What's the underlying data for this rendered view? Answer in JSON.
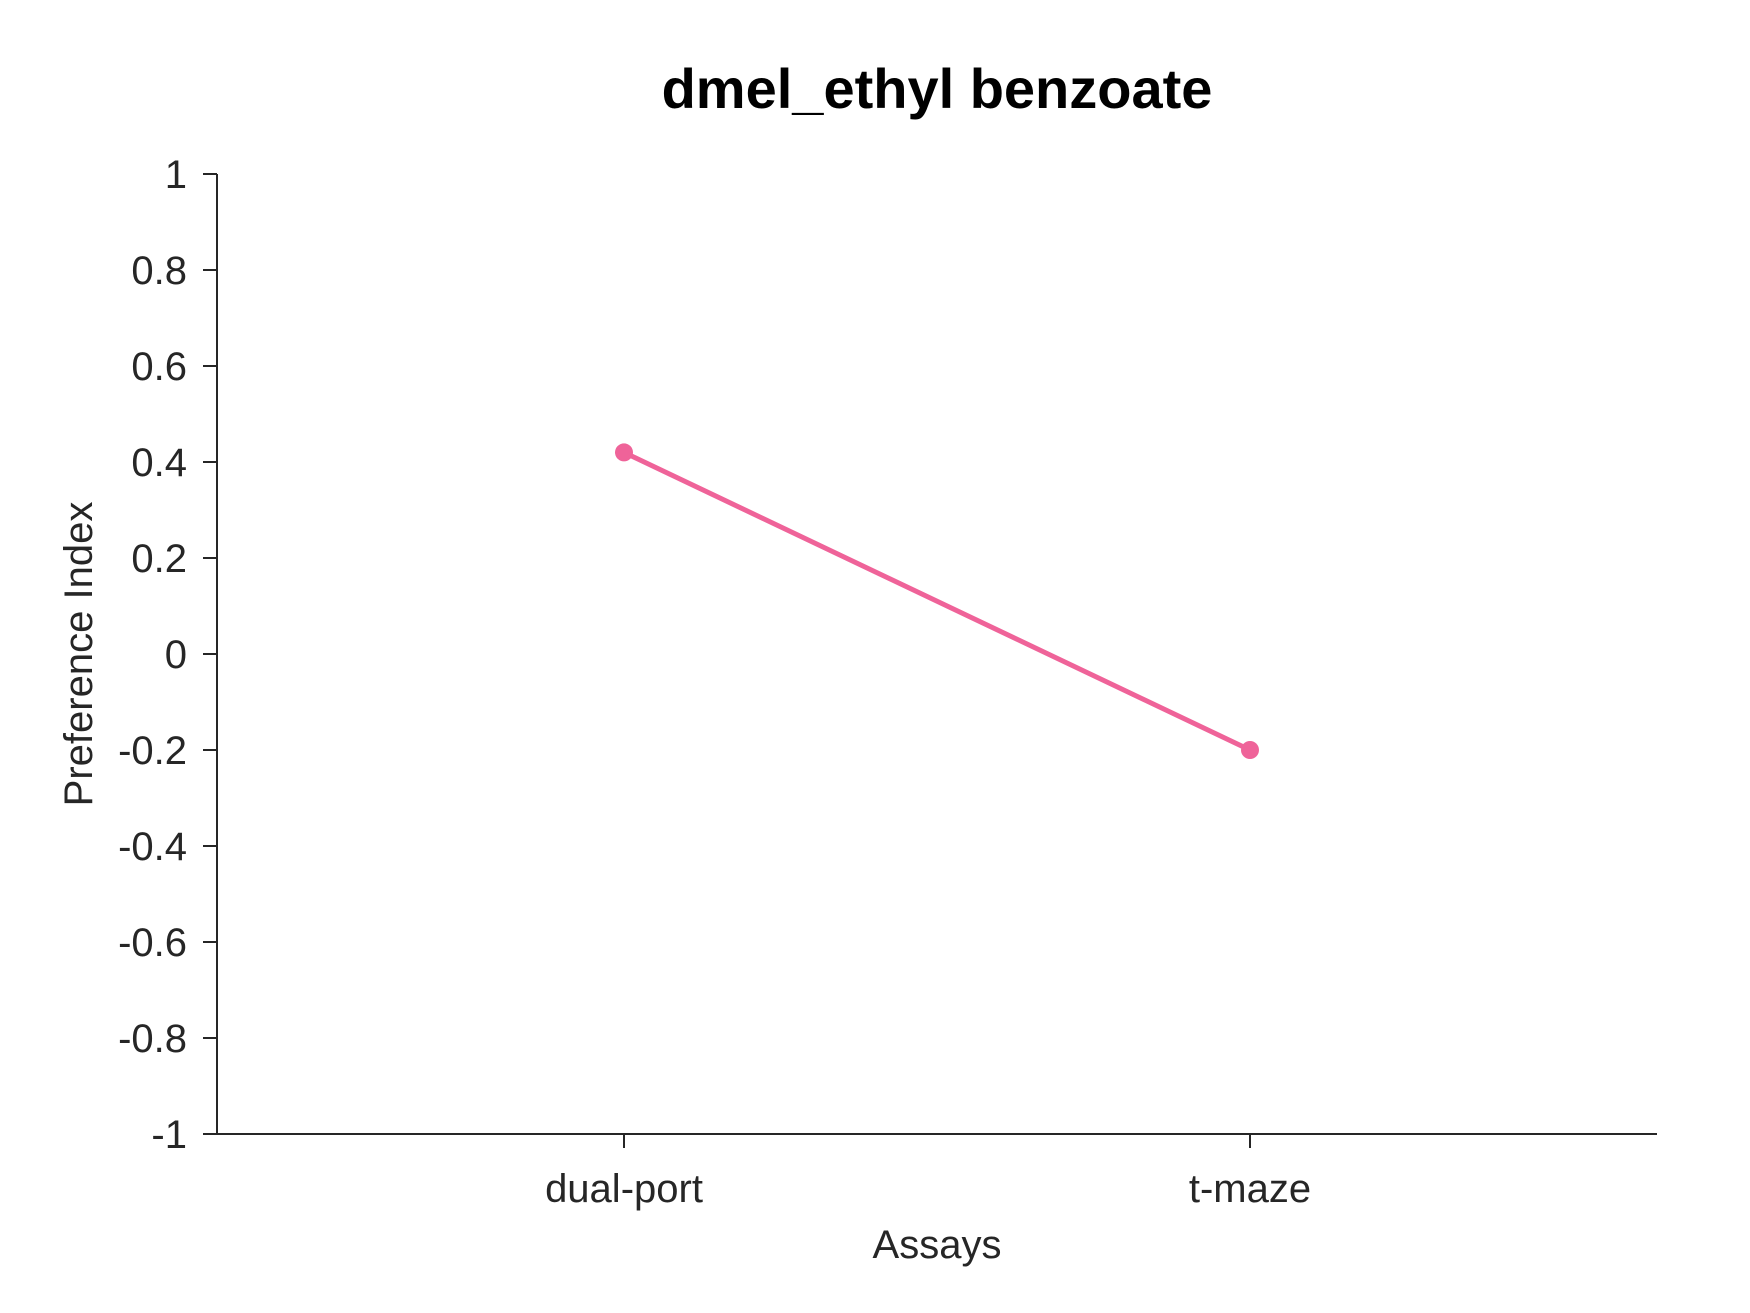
{
  "chart_data": {
    "type": "line",
    "title": "dmel_ethyl benzoate",
    "xlabel": "Assays",
    "ylabel": "Preference Index",
    "categories": [
      "dual-port",
      "t-maze"
    ],
    "series": [
      {
        "values": [
          0.42,
          -0.2
        ],
        "color": "#ef6399"
      }
    ],
    "ylim": [
      -1,
      1
    ],
    "yticks": [
      1,
      0.8,
      0.6,
      0.4,
      0.2,
      0,
      -0.2,
      -0.4,
      -0.6,
      -0.8,
      -1
    ],
    "ytick_labels": [
      "1",
      "0.8",
      "0.6",
      "0.4",
      "0.2",
      "0",
      "-0.2",
      "-0.4",
      "-0.6",
      "-0.8",
      "-1"
    ],
    "grid": false,
    "legend": "none"
  }
}
